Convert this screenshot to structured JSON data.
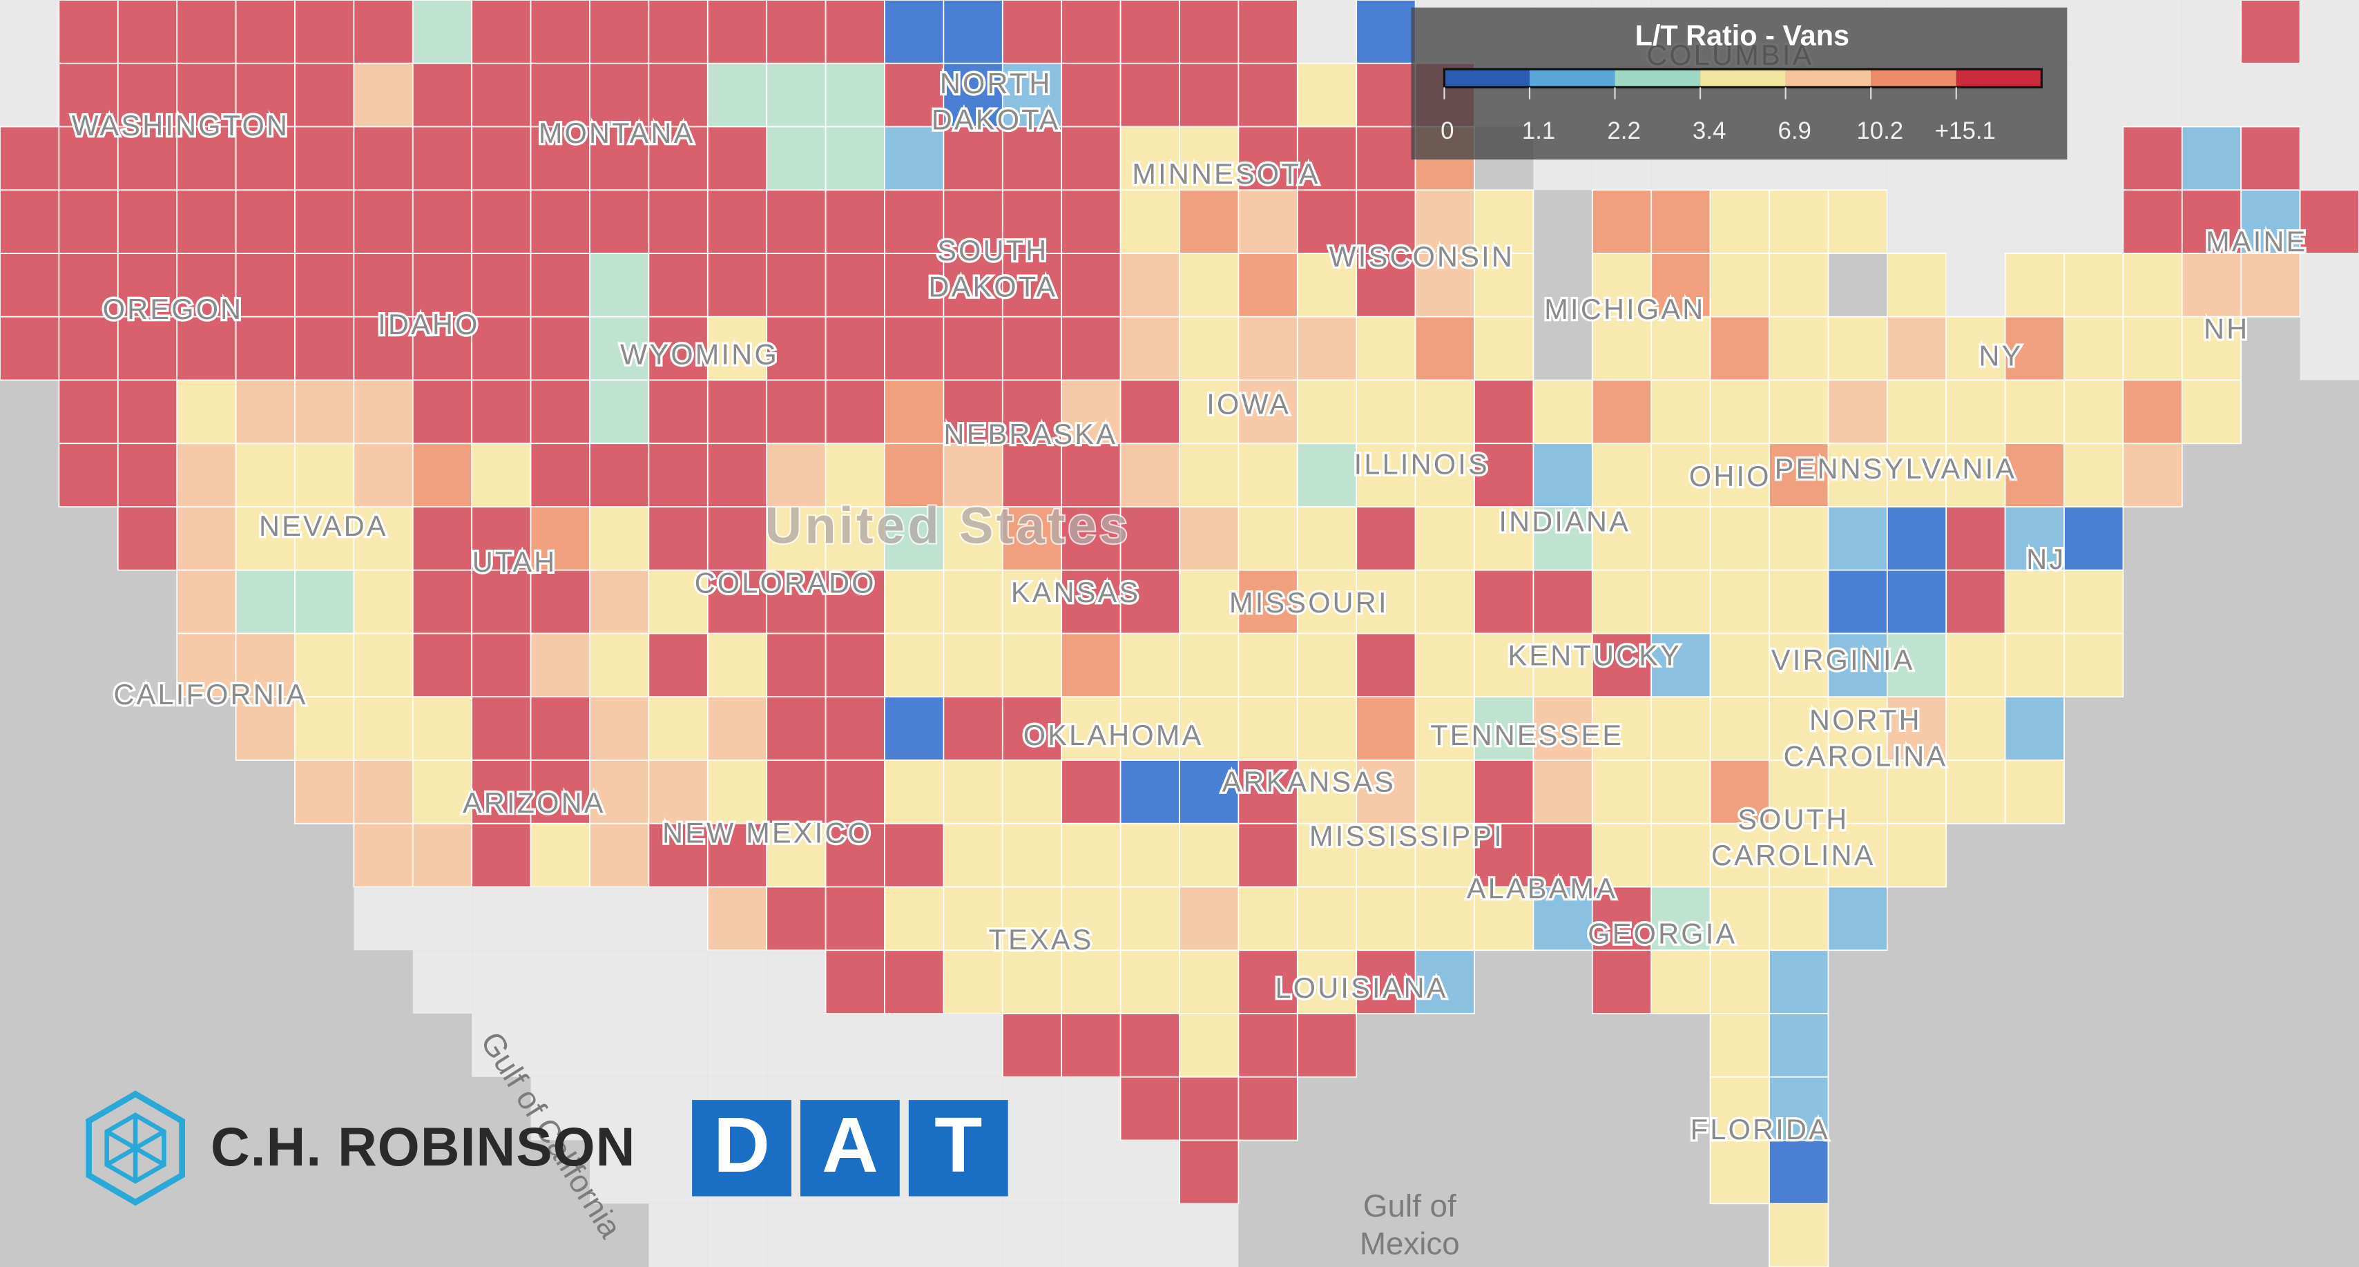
{
  "legend": {
    "title": "L/T Ratio - Vans",
    "ticks": [
      "0",
      "1.1",
      "2.2",
      "3.4",
      "6.9",
      "10.2",
      "+15.1"
    ],
    "colors": [
      "#2a5db0",
      "#5aa6d8",
      "#9fd8c4",
      "#f2e6a0",
      "#f5c49a",
      "#ec8c68",
      "#cc2a3d"
    ]
  },
  "country_label": "United States",
  "region_labels": [
    [
      "WASHINGTON"
    ],
    [
      "MONTANA"
    ],
    [
      "NORTH",
      "DAKOTA"
    ],
    [
      "MINNESOTA"
    ],
    [
      "SOUTH",
      "DAKOTA"
    ],
    [
      "WISCONSIN"
    ],
    [
      "MICHIGAN"
    ],
    [
      "OREGON"
    ],
    [
      "IDAHO"
    ],
    [
      "WYOMING"
    ],
    [
      "NEBRASKA"
    ],
    [
      "IOWA"
    ],
    [
      "ILLINOIS"
    ],
    [
      "INDIANA"
    ],
    [
      "OHIO"
    ],
    [
      "PENNSYLVANIA"
    ],
    [
      "NY"
    ],
    [
      "NH"
    ],
    [
      "MAINE"
    ],
    [
      "NEVADA"
    ],
    [
      "UTAH"
    ],
    [
      "COLORADO"
    ],
    [
      "KANSAS"
    ],
    [
      "MISSOURI"
    ],
    [
      "KENTUCKY"
    ],
    [
      "VIRGINIA"
    ],
    [
      "NJ"
    ],
    [
      "CALIFORNIA"
    ],
    [
      "TENNESSEE"
    ],
    [
      "NORTH",
      "CAROLINA"
    ],
    [
      "OKLAHOMA"
    ],
    [
      "ARKANSAS"
    ],
    [
      "ARIZONA"
    ],
    [
      "NEW MEXICO"
    ],
    [
      "MISSISSIPPI"
    ],
    [
      "ALABAMA"
    ],
    [
      "GEORGIA"
    ],
    [
      "SOUTH",
      "CAROLINA"
    ],
    [
      "TEXAS"
    ],
    [
      "LOUISIANA"
    ],
    [
      "FLORIDA"
    ],
    [
      "COLUMBIA"
    ]
  ],
  "water_labels": [
    [
      "Gulf of",
      "Mexico"
    ],
    [
      "Gulf of California"
    ]
  ],
  "logos": {
    "robinson": "C.H. ROBINSON",
    "dat": [
      "D",
      "A",
      "T"
    ]
  }
}
